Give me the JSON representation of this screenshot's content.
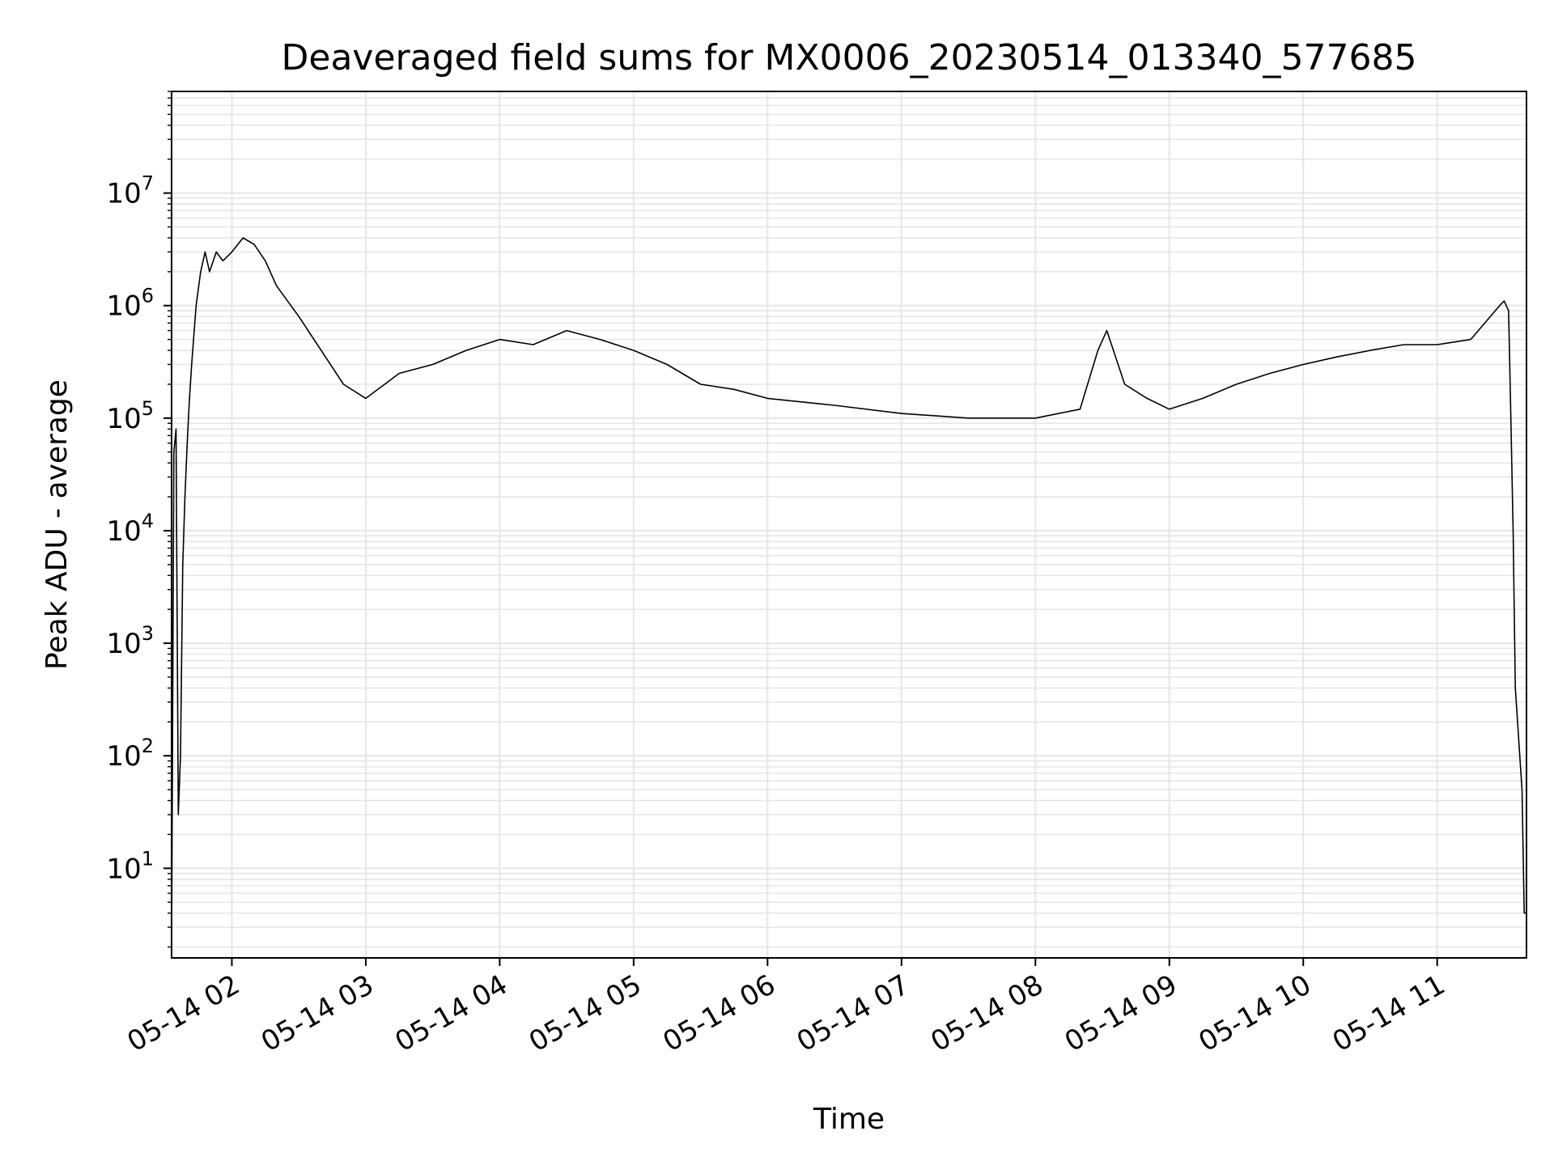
{
  "chart_data": {
    "type": "line",
    "title": "Deaveraged field sums for MX0006_20230514_013340_577685",
    "xlabel": "Time",
    "ylabel": "Peak ADU - average",
    "yscale": "log",
    "ylim": [
      1.6,
      80000000
    ],
    "xlim": [
      "2023-05-14 01:33",
      "2023-05-14 11:40"
    ],
    "grid": true,
    "series_color": "#000000",
    "grid_color": "#e6e6e6",
    "x_ticks": [
      {
        "label": "05-14 02",
        "time": "2023-05-14 02:00"
      },
      {
        "label": "05-14 03",
        "time": "2023-05-14 03:00"
      },
      {
        "label": "05-14 04",
        "time": "2023-05-14 04:00"
      },
      {
        "label": "05-14 05",
        "time": "2023-05-14 05:00"
      },
      {
        "label": "05-14 06",
        "time": "2023-05-14 06:00"
      },
      {
        "label": "05-14 07",
        "time": "2023-05-14 07:00"
      },
      {
        "label": "05-14 08",
        "time": "2023-05-14 08:00"
      },
      {
        "label": "05-14 09",
        "time": "2023-05-14 09:00"
      },
      {
        "label": "05-14 10",
        "time": "2023-05-14 10:00"
      },
      {
        "label": "05-14 11",
        "time": "2023-05-14 11:00"
      }
    ],
    "y_ticks": [
      {
        "base": "10",
        "exp": "1",
        "value": 10
      },
      {
        "base": "10",
        "exp": "2",
        "value": 100
      },
      {
        "base": "10",
        "exp": "3",
        "value": 1000
      },
      {
        "base": "10",
        "exp": "4",
        "value": 10000
      },
      {
        "base": "10",
        "exp": "5",
        "value": 100000
      },
      {
        "base": "10",
        "exp": "6",
        "value": 1000000
      },
      {
        "base": "10",
        "exp": "7",
        "value": 10000000
      }
    ],
    "series": [
      {
        "x": [
          "2023-05-14 01:33",
          "2023-05-14 01:34",
          "2023-05-14 01:35",
          "2023-05-14 01:36",
          "2023-05-14 01:37",
          "2023-05-14 01:38",
          "2023-05-14 01:39",
          "2023-05-14 01:40",
          "2023-05-14 01:41",
          "2023-05-14 01:42",
          "2023-05-14 01:44",
          "2023-05-14 01:46",
          "2023-05-14 01:48",
          "2023-05-14 01:50",
          "2023-05-14 01:53",
          "2023-05-14 01:56",
          "2023-05-14 02:00",
          "2023-05-14 02:05",
          "2023-05-14 02:10",
          "2023-05-14 02:15",
          "2023-05-14 02:20",
          "2023-05-14 02:30",
          "2023-05-14 02:40",
          "2023-05-14 02:50",
          "2023-05-14 03:00",
          "2023-05-14 03:15",
          "2023-05-14 03:30",
          "2023-05-14 03:45",
          "2023-05-14 04:00",
          "2023-05-14 04:15",
          "2023-05-14 04:30",
          "2023-05-14 04:45",
          "2023-05-14 05:00",
          "2023-05-14 05:15",
          "2023-05-14 05:30",
          "2023-05-14 05:45",
          "2023-05-14 06:00",
          "2023-05-14 06:30",
          "2023-05-14 07:00",
          "2023-05-14 07:30",
          "2023-05-14 08:00",
          "2023-05-14 08:20",
          "2023-05-14 08:28",
          "2023-05-14 08:32",
          "2023-05-14 08:40",
          "2023-05-14 08:50",
          "2023-05-14 09:00",
          "2023-05-14 09:15",
          "2023-05-14 09:30",
          "2023-05-14 09:45",
          "2023-05-14 10:00",
          "2023-05-14 10:15",
          "2023-05-14 10:30",
          "2023-05-14 10:45",
          "2023-05-14 11:00",
          "2023-05-14 11:15",
          "2023-05-14 11:28",
          "2023-05-14 11:30",
          "2023-05-14 11:32",
          "2023-05-14 11:33",
          "2023-05-14 11:34",
          "2023-05-14 11:35",
          "2023-05-14 11:36",
          "2023-05-14 11:37",
          "2023-05-14 11:38",
          "2023-05-14 11:39",
          "2023-05-14 11:40"
        ],
        "y": [
          1.8,
          50000,
          80000,
          30,
          100,
          5000,
          20000,
          60000,
          150000,
          300000,
          1000000,
          2000000,
          3000000,
          2000000,
          3000000,
          2500000,
          3000000,
          4000000,
          3500000,
          2500000,
          1500000,
          800000,
          400000,
          200000,
          150000,
          250000,
          300000,
          400000,
          500000,
          450000,
          600000,
          500000,
          400000,
          300000,
          200000,
          180000,
          150000,
          130000,
          110000,
          100000,
          100000,
          120000,
          400000,
          600000,
          200000,
          150000,
          120000,
          150000,
          200000,
          250000,
          300000,
          350000,
          400000,
          450000,
          450000,
          500000,
          1000000,
          1100000,
          900000,
          100000,
          10000,
          400,
          200,
          100,
          50,
          4,
          4
        ]
      }
    ]
  }
}
